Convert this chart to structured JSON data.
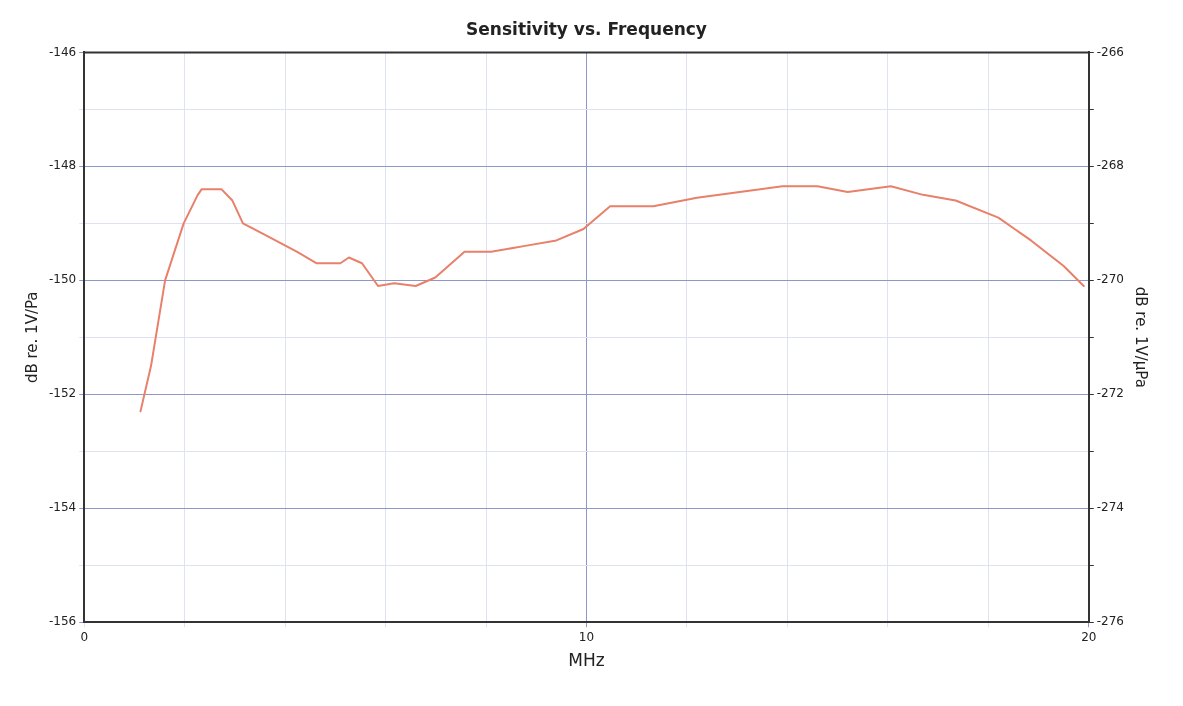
{
  "chart_data": {
    "type": "line",
    "title": "Sensitivity vs. Frequency",
    "xlabel": "MHz",
    "ylabel": "dB re. 1V/Pa",
    "y2label": "dB re. 1V/μPa",
    "x": [
      1.12,
      1.33,
      1.61,
      1.98,
      2.26,
      2.34,
      2.73,
      2.95,
      3.16,
      3.59,
      4.24,
      4.62,
      5.1,
      5.27,
      5.53,
      5.85,
      6.17,
      6.6,
      6.99,
      7.57,
      8.1,
      8.75,
      9.4,
      9.94,
      10.47,
      11.33,
      12.2,
      13.05,
      13.9,
      14.6,
      15.2,
      16.06,
      16.7,
      17.35,
      18.2,
      18.85,
      19.5,
      19.9
    ],
    "series": [
      {
        "color": "#e8806a",
        "values": [
          -152.3,
          -151.5,
          -150.0,
          -149.0,
          -148.5,
          -148.4,
          -148.4,
          -148.6,
          -149.0,
          -149.2,
          -149.5,
          -149.7,
          -149.7,
          -149.6,
          -149.7,
          -150.1,
          -150.05,
          -150.1,
          -149.95,
          -149.5,
          -149.5,
          -149.4,
          -149.3,
          -149.1,
          -148.7,
          -148.7,
          -148.55,
          -148.45,
          -148.35,
          -148.35,
          -148.45,
          -148.35,
          -148.5,
          -148.6,
          -148.9,
          -149.3,
          -149.75,
          -150.1
        ]
      }
    ],
    "xlim": [
      0,
      20
    ],
    "xticks": [
      0,
      {
        "value": 2,
        "label": null
      },
      {
        "value": 4,
        "label": null
      },
      {
        "value": 6,
        "label": null
      },
      {
        "value": 8,
        "label": null
      },
      10,
      {
        "value": 12,
        "label": null
      },
      {
        "value": 14,
        "label": null
      },
      {
        "value": 16,
        "label": null
      },
      {
        "value": 18,
        "label": null
      },
      20
    ],
    "ylim": [
      -156,
      -146
    ],
    "yticks": [
      -156,
      {
        "value": -155,
        "label": null
      },
      -154,
      {
        "value": -153,
        "label": null
      },
      -152,
      {
        "value": -151,
        "label": null
      },
      -150,
      {
        "value": -149,
        "label": null
      },
      -148,
      {
        "value": -147,
        "label": null
      },
      -146
    ],
    "y2lim": [
      -276,
      -266
    ],
    "y2ticks": [
      -276,
      {
        "value": -275,
        "label": null
      },
      -274,
      {
        "value": -273,
        "label": null
      },
      -272,
      {
        "value": -271,
        "label": null
      },
      -270,
      {
        "value": -269,
        "label": null
      },
      -268,
      {
        "value": -267,
        "label": null
      },
      -266
    ],
    "grid": true,
    "legend": false,
    "marker": "none",
    "line_style": "solid"
  }
}
